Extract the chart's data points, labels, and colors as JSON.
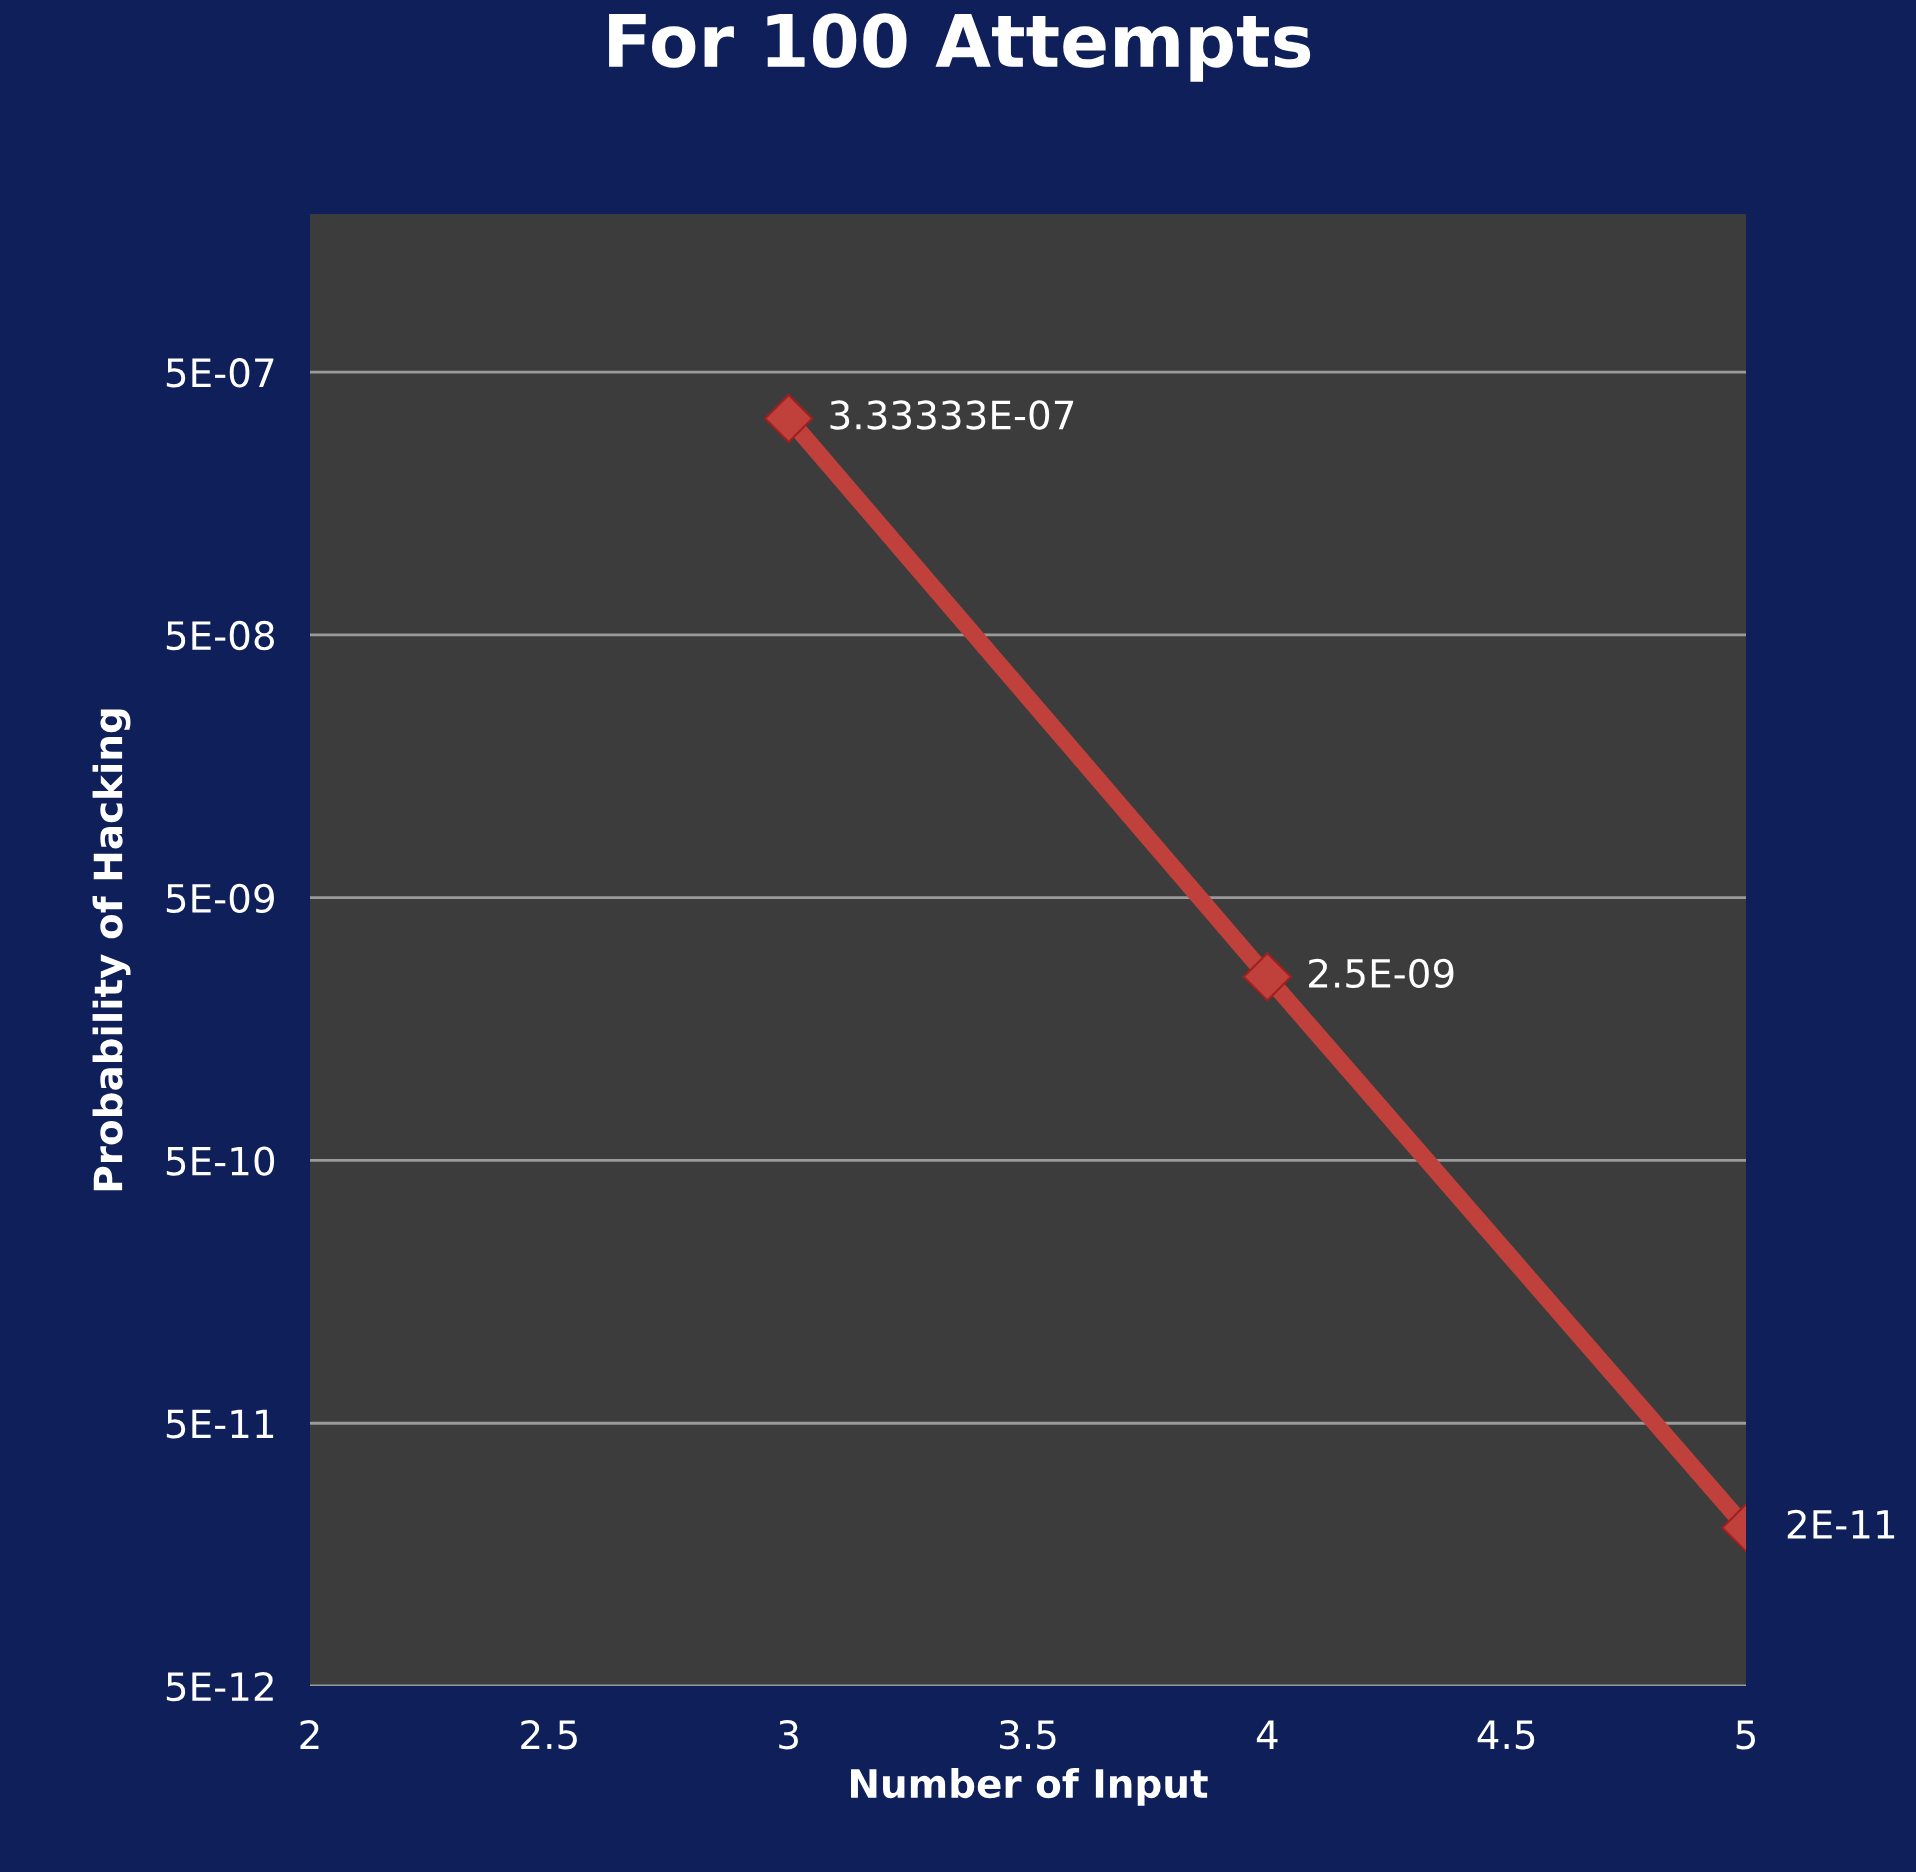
{
  "chart_data": {
    "type": "line",
    "title": "For 100 Attempts",
    "xlabel": "Number of Input",
    "ylabel": "Probability of Hacking",
    "x": [
      3,
      4,
      5
    ],
    "series": [
      {
        "color": "#c0403c",
        "values": [
          3.33333e-07,
          2.5e-09,
          2e-11
        ],
        "value_labels": [
          "3.33333E-07",
          "2.5E-09",
          "2E-11"
        ]
      }
    ],
    "log": "y",
    "xlim": [
      2,
      5
    ],
    "xticks": [
      2,
      2.5,
      3,
      3.5,
      4,
      4.5,
      5
    ],
    "ylim": [
      5e-12,
      2e-06
    ],
    "yticks": [
      {
        "value": 5e-12,
        "label": "5E-12"
      },
      {
        "value": 5e-11,
        "label": "5E-11"
      },
      {
        "value": 5e-10,
        "label": "5E-10"
      },
      {
        "value": 5e-09,
        "label": "5E-09"
      },
      {
        "value": 5e-08,
        "label": "5E-08"
      },
      {
        "value": 5e-07,
        "label": "5E-07"
      }
    ],
    "grid": "y",
    "marker": "diamond",
    "line_style": "solid",
    "legend": false
  }
}
